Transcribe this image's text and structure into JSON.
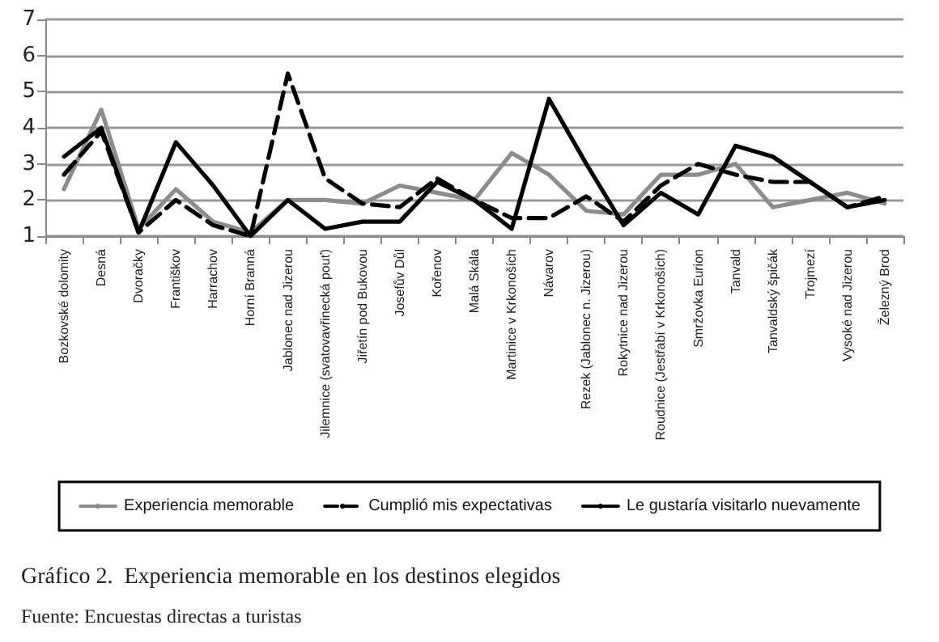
{
  "chart_data": {
    "type": "line",
    "title": "Gráfico 2.  Experiencia memorable en los destinos elegidos",
    "annotations": [
      "Fuente: Encuestas directas a turistas"
    ],
    "categories": [
      "Bozkovské dolomity",
      "Desná",
      "Dvoračky",
      "Františkov",
      "Harrachov",
      "Horní Branná",
      "Jablonec nad Jizerou",
      "Jilemnice (svatovavřinecká pouť)",
      "Jiřetín pod Bukovou",
      "Josefův Důl",
      "Kořenov",
      "Malá Skála",
      "Martinice v Krkonoších",
      "Návarov",
      "Rezek (Jablonec n. Jizerou)",
      "Rokytnice nad Jizerou",
      "Roudnice (Jestřabí v Krkonoších)",
      "Smržovka Eurion",
      "Tanvald",
      "Tanvaldský špičák",
      "Trojmezí",
      "Vysoké nad Jizerou",
      "Železný Brod"
    ],
    "series": [
      {
        "name": "Experiencia memorable",
        "color": "#8c8c8c",
        "line_style": "solid",
        "values": [
          2.3,
          4.5,
          1.2,
          2.3,
          1.4,
          1.1,
          2.0,
          2.0,
          1.9,
          2.4,
          2.2,
          2.0,
          3.3,
          2.7,
          1.7,
          1.6,
          2.7,
          2.7,
          3.0,
          1.8,
          2.0,
          2.2,
          1.9
        ]
      },
      {
        "name": "Cumplió mis expectativas",
        "color": "#000000",
        "line_style": "dashed",
        "values": [
          2.7,
          3.9,
          1.1,
          2.0,
          1.3,
          1.0,
          5.5,
          2.6,
          1.9,
          1.8,
          2.6,
          2.0,
          1.5,
          1.5,
          2.1,
          1.4,
          2.4,
          3.0,
          2.7,
          2.5,
          2.5,
          1.8,
          2.1
        ]
      },
      {
        "name": "Le gustaría visitarlo nuevamente",
        "color": "#000000",
        "line_style": "solid",
        "values": [
          3.2,
          4.0,
          1.1,
          3.6,
          2.4,
          1.0,
          2.0,
          1.2,
          1.4,
          1.4,
          2.5,
          2.0,
          1.2,
          4.8,
          3.0,
          1.3,
          2.2,
          1.6,
          3.5,
          3.2,
          2.5,
          1.8,
          2.0
        ]
      }
    ],
    "ylim": [
      1,
      7
    ],
    "yticks": [
      1,
      2,
      3,
      4,
      5,
      6,
      7
    ],
    "grid": "y",
    "legend": "bottom",
    "marker": "none"
  }
}
